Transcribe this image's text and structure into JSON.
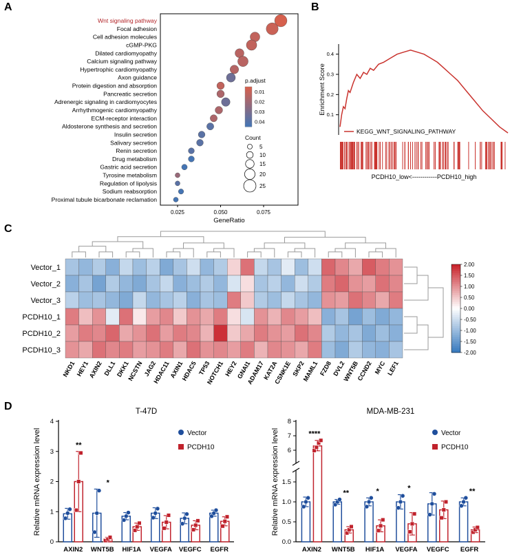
{
  "panels": {
    "a": {
      "label": "A"
    },
    "b": {
      "label": "B"
    },
    "c": {
      "label": "C"
    },
    "d": {
      "label": "D"
    }
  },
  "colors": {
    "pathway_highlight": "#b22428",
    "dot_low": "#d6604d",
    "dot_high": "#4575b4",
    "gsea_line": "#c9322d",
    "heat_pos": "#c9252d",
    "heat_neg": "#3b7cbf",
    "vector": "#1f4e9c",
    "pcdh10": "#c0222c",
    "dendro": "#9a9a9a"
  },
  "chart_data": [
    {
      "type": "scatter",
      "name": "kegg-dotplot",
      "xlabel": "GeneRatio",
      "x_ticks": [
        "0.025",
        "0.050",
        "0.075"
      ],
      "xlim": [
        0.015,
        0.095
      ],
      "pathways": [
        {
          "name": "Wnt signaling pathway",
          "gene_ratio": 0.085,
          "count": 25,
          "p_adjust": 0.005,
          "highlight": true
        },
        {
          "name": "Focal adhesion",
          "gene_ratio": 0.08,
          "count": 24,
          "p_adjust": 0.008
        },
        {
          "name": "Cell adhesion molecules",
          "gene_ratio": 0.07,
          "count": 18,
          "p_adjust": 0.01
        },
        {
          "name": "cGMP-PKG",
          "gene_ratio": 0.068,
          "count": 20,
          "p_adjust": 0.01
        },
        {
          "name": "Dilated cardiomyopathy",
          "gene_ratio": 0.061,
          "count": 16,
          "p_adjust": 0.012
        },
        {
          "name": "Calcium signaling pathway",
          "gene_ratio": 0.063,
          "count": 20,
          "p_adjust": 0.012
        },
        {
          "name": "Hypertrophic cardiomyopathy",
          "gene_ratio": 0.058,
          "count": 15,
          "p_adjust": 0.013
        },
        {
          "name": "Axon guidance",
          "gene_ratio": 0.056,
          "count": 16,
          "p_adjust": 0.03
        },
        {
          "name": "Protein digestion and absorption",
          "gene_ratio": 0.05,
          "count": 12,
          "p_adjust": 0.01
        },
        {
          "name": "Pancreatic secretion",
          "gene_ratio": 0.05,
          "count": 12,
          "p_adjust": 0.015
        },
        {
          "name": "Adrenergic signaling in cardiomyocytes",
          "gene_ratio": 0.053,
          "count": 15,
          "p_adjust": 0.03
        },
        {
          "name": "Arrhythmogenic cardiomyopathy",
          "gene_ratio": 0.049,
          "count": 12,
          "p_adjust": 0.015
        },
        {
          "name": "ECM-receptor interaction",
          "gene_ratio": 0.046,
          "count": 11,
          "p_adjust": 0.015
        },
        {
          "name": "Aldosterone synthesis and secretion",
          "gene_ratio": 0.044,
          "count": 11,
          "p_adjust": 0.035
        },
        {
          "name": "Insulin secretion",
          "gene_ratio": 0.039,
          "count": 10,
          "p_adjust": 0.035
        },
        {
          "name": "Salivary secretion",
          "gene_ratio": 0.038,
          "count": 10,
          "p_adjust": 0.035
        },
        {
          "name": "Renin secretion",
          "gene_ratio": 0.033,
          "count": 8,
          "p_adjust": 0.035
        },
        {
          "name": "Drug metabolism",
          "gene_ratio": 0.033,
          "count": 8,
          "p_adjust": 0.04
        },
        {
          "name": "Gastric acid secretion",
          "gene_ratio": 0.029,
          "count": 7,
          "p_adjust": 0.04
        },
        {
          "name": "Tyrosine metabolism",
          "gene_ratio": 0.025,
          "count": 5,
          "p_adjust": 0.02
        },
        {
          "name": "Regulation of lipolysis",
          "gene_ratio": 0.025,
          "count": 5,
          "p_adjust": 0.035
        },
        {
          "name": "Sodium reabsorption",
          "gene_ratio": 0.027,
          "count": 6,
          "p_adjust": 0.04
        },
        {
          "name": "Proximal tubule bicarbonate reclamation",
          "gene_ratio": 0.024,
          "count": 5,
          "p_adjust": 0.04
        }
      ],
      "legend": {
        "p_adjust_title": "p.adjust",
        "p_adjust_ticks": [
          "0.01",
          "0.02",
          "0.03",
          "0.04"
        ],
        "count_title": "Count",
        "count_ticks": [
          "5",
          "10",
          "15",
          "20",
          "25"
        ]
      }
    },
    {
      "type": "line",
      "name": "gsea-plot",
      "ylabel": "Enrichment Score",
      "y_ticks": [
        "0.4",
        "0.3",
        "0.2",
        "0.1"
      ],
      "ylim": [
        0,
        0.45
      ],
      "series_label": "KEGG_WNT_SIGNALING_PATHWAY",
      "xlabel": "PCDH10_low<------------PCDH10_high",
      "curve": [
        [
          0,
          0.04
        ],
        [
          0.01,
          0.1
        ],
        [
          0.02,
          0.14
        ],
        [
          0.03,
          0.13
        ],
        [
          0.04,
          0.18
        ],
        [
          0.05,
          0.22
        ],
        [
          0.06,
          0.21
        ],
        [
          0.08,
          0.26
        ],
        [
          0.1,
          0.3
        ],
        [
          0.12,
          0.28
        ],
        [
          0.14,
          0.31
        ],
        [
          0.16,
          0.3
        ],
        [
          0.18,
          0.33
        ],
        [
          0.2,
          0.32
        ],
        [
          0.23,
          0.35
        ],
        [
          0.26,
          0.36
        ],
        [
          0.3,
          0.38
        ],
        [
          0.34,
          0.4
        ],
        [
          0.38,
          0.41
        ],
        [
          0.42,
          0.42
        ],
        [
          0.46,
          0.41
        ],
        [
          0.5,
          0.4
        ],
        [
          0.54,
          0.38
        ],
        [
          0.58,
          0.36
        ],
        [
          0.62,
          0.33
        ],
        [
          0.66,
          0.3
        ],
        [
          0.7,
          0.27
        ],
        [
          0.75,
          0.22
        ],
        [
          0.8,
          0.17
        ],
        [
          0.85,
          0.12
        ],
        [
          0.9,
          0.08
        ],
        [
          0.95,
          0.04
        ],
        [
          1,
          0.01
        ]
      ]
    },
    {
      "type": "heatmap",
      "name": "expression-heatmap",
      "rows": [
        "Vector_1",
        "Vector_2",
        "Vector_3",
        "PCDH10_1",
        "PCDH10_2",
        "PCDH10_3"
      ],
      "columns": [
        "NKD1",
        "HEY1",
        "AXIN2",
        "DLL1",
        "DKK1",
        "NCSTN",
        "JAG2",
        "HDAC11",
        "AXIN1",
        "HDAC5",
        "TP53",
        "NOTCH1",
        "HEY2",
        "GNAI1",
        "ADAM17",
        "KAT2A",
        "CSNK1E",
        "SKP2",
        "MAML1",
        "FZD8",
        "DVL2",
        "WNT5B",
        "CCND2",
        "MYC",
        "LEF1"
      ],
      "values": [
        [
          -0.9,
          -1.1,
          -0.8,
          -1.2,
          -0.6,
          -1.0,
          -0.7,
          -1.3,
          -0.9,
          -0.5,
          -1.1,
          -0.8,
          0.4,
          1.3,
          -0.6,
          -0.9,
          -0.3,
          -1.0,
          -0.5,
          1.4,
          1.1,
          0.8,
          1.5,
          1.2,
          1.0
        ],
        [
          -1.2,
          -0.9,
          -1.4,
          -0.8,
          -1.1,
          -1.3,
          -0.9,
          -0.6,
          -1.2,
          -1.0,
          -0.8,
          -1.1,
          -0.4,
          0.3,
          -0.9,
          -0.7,
          -1.1,
          -0.5,
          -0.8,
          1.2,
          1.4,
          1.0,
          0.9,
          1.3,
          1.1
        ],
        [
          -0.7,
          -1.0,
          -0.9,
          -1.1,
          -1.3,
          -0.6,
          -1.1,
          -0.9,
          -0.7,
          -1.2,
          -0.9,
          -1.0,
          1.2,
          0.5,
          -0.8,
          -1.0,
          -0.6,
          -0.9,
          -1.1,
          1.0,
          0.9,
          1.3,
          1.1,
          0.8,
          1.2
        ],
        [
          1.2,
          0.6,
          1.0,
          -0.3,
          1.3,
          0.2,
          0.9,
          1.1,
          0.5,
          1.0,
          0.8,
          1.2,
          0.3,
          -0.4,
          1.0,
          0.7,
          1.1,
          0.9,
          0.6,
          -1.2,
          -0.9,
          -1.4,
          -1.0,
          -1.3,
          -1.1
        ],
        [
          0.9,
          1.2,
          1.1,
          1.4,
          0.8,
          1.0,
          1.3,
          0.9,
          1.2,
          1.1,
          0.7,
          1.9,
          0.5,
          0.8,
          1.2,
          1.0,
          0.9,
          1.3,
          1.1,
          -0.8,
          -1.1,
          -0.9,
          -1.3,
          -1.0,
          -1.2
        ],
        [
          1.0,
          0.8,
          1.3,
          1.1,
          1.2,
          0.9,
          1.0,
          1.2,
          0.8,
          1.3,
          1.0,
          1.1,
          0.9,
          1.2,
          0.7,
          1.1,
          1.0,
          0.8,
          1.2,
          -1.0,
          -1.3,
          -0.8,
          -1.1,
          -1.2,
          -0.9
        ]
      ],
      "zlim": [
        -2,
        2
      ],
      "colorbar_ticks": [
        "2.00",
        "1.50",
        "1.00",
        "0.50",
        "0.00",
        "-0.50",
        "-1.00",
        "-1.50",
        "-2.00"
      ]
    },
    {
      "type": "bar",
      "name": "qpcr-t47d",
      "title": "T-47D",
      "ylabel": "Relative mRNA expression level",
      "categories": [
        "AXIN2",
        "WNT5B",
        "HIF1A",
        "VEGFA",
        "VEGFC",
        "EGFR"
      ],
      "y_ticks": [
        "4",
        "3",
        "2",
        "1",
        "0"
      ],
      "ylim": [
        0,
        4
      ],
      "series": [
        {
          "name": "Vector",
          "marker": "circle",
          "values": [
            0.93,
            0.95,
            0.85,
            0.95,
            0.78,
            0.95
          ],
          "errors": [
            0.18,
            0.8,
            0.12,
            0.18,
            0.18,
            0.1
          ],
          "points": [
            [
              0.78,
              0.95,
              1.08
            ],
            [
              0.32,
              0.95,
              1.7
            ],
            [
              0.72,
              0.85,
              0.97
            ],
            [
              0.8,
              0.95,
              1.1
            ],
            [
              0.6,
              0.78,
              0.92
            ],
            [
              0.85,
              0.95,
              1.05
            ]
          ]
        },
        {
          "name": "PCDH10",
          "marker": "square",
          "values": [
            2.0,
            0.09,
            0.5,
            0.65,
            0.55,
            0.68
          ],
          "errors": [
            1.0,
            0.06,
            0.12,
            0.22,
            0.15,
            0.15
          ],
          "points": [
            [
              1.05,
              2.0,
              2.95
            ],
            [
              0.04,
              0.09,
              0.15
            ],
            [
              0.38,
              0.5,
              0.62
            ],
            [
              0.45,
              0.65,
              0.88
            ],
            [
              0.4,
              0.55,
              0.7
            ],
            [
              0.52,
              0.68,
              0.83
            ]
          ]
        }
      ],
      "significance": [
        {
          "category": "AXIN2",
          "label": "**"
        },
        {
          "category": "WNT5B",
          "label": "*"
        }
      ]
    },
    {
      "type": "bar",
      "name": "qpcr-mdamb231",
      "title": "MDA-MB-231",
      "ylabel": "Relative mRNA expression level",
      "categories": [
        "AXIN2",
        "WNT5B",
        "HIF1A",
        "VEGFA",
        "VEGFC",
        "EGFR"
      ],
      "axis_break": {
        "lower_range": [
          0,
          1.5
        ],
        "upper_range": [
          6,
          8
        ],
        "upper_ticks": [
          "8",
          "7",
          "6"
        ],
        "lower_ticks": [
          "1.5",
          "1.0",
          "0.5",
          "0.0"
        ]
      },
      "series": [
        {
          "name": "Vector",
          "marker": "circle",
          "values": [
            1.0,
            1.0,
            1.0,
            1.0,
            0.95,
            1.0
          ],
          "errors": [
            0.12,
            0.06,
            0.1,
            0.18,
            0.28,
            0.1
          ],
          "points": [
            [
              0.88,
              1.0,
              1.1
            ],
            [
              0.93,
              1.0,
              1.06
            ],
            [
              0.88,
              1.0,
              1.1
            ],
            [
              0.85,
              1.0,
              1.15
            ],
            [
              0.68,
              0.95,
              1.2
            ],
            [
              0.9,
              1.0,
              1.1
            ]
          ]
        },
        {
          "name": "PCDH10",
          "marker": "square",
          "values": [
            6.3,
            0.3,
            0.4,
            0.45,
            0.8,
            0.3
          ],
          "errors": [
            0.38,
            0.08,
            0.15,
            0.28,
            0.22,
            0.07
          ],
          "points": [
            [
              5.95,
              6.2,
              6.5,
              6.68
            ],
            [
              0.22,
              0.3,
              0.38
            ],
            [
              0.28,
              0.4,
              0.55
            ],
            [
              0.25,
              0.45,
              0.7
            ],
            [
              0.6,
              0.8,
              1.0
            ],
            [
              0.24,
              0.3,
              0.36
            ]
          ]
        }
      ],
      "significance": [
        {
          "category": "AXIN2",
          "label": "****"
        },
        {
          "category": "WNT5B",
          "label": "**"
        },
        {
          "category": "HIF1A",
          "label": "*"
        },
        {
          "category": "VEGFA",
          "label": "*"
        },
        {
          "category": "EGFR",
          "label": "**"
        }
      ]
    }
  ]
}
